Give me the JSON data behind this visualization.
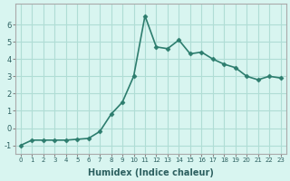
{
  "x": [
    0,
    1,
    2,
    3,
    4,
    5,
    6,
    7,
    8,
    9,
    10,
    11,
    12,
    13,
    14,
    15,
    16,
    17,
    18,
    19,
    20,
    21,
    22,
    23
  ],
  "y": [
    -1.0,
    -0.7,
    -0.7,
    -0.7,
    -0.7,
    -0.65,
    -0.6,
    -0.2,
    0.8,
    1.5,
    3.0,
    6.5,
    4.7,
    4.6,
    5.1,
    4.3,
    4.4,
    4.0,
    3.7,
    3.5,
    3.0,
    2.8,
    3.0,
    2.9
  ],
  "xlabel": "Humidex (Indice chaleur)",
  "ylabel": "",
  "ylim": [
    -1.5,
    7.2
  ],
  "xlim": [
    -0.5,
    23.5
  ],
  "line_color": "#2d7d6e",
  "marker_color": "#2d7d6e",
  "bg_color": "#d8f5f0",
  "grid_color": "#b0ddd5",
  "yticks": [
    -1,
    0,
    1,
    2,
    3,
    4,
    5,
    6
  ],
  "xticks": [
    0,
    1,
    2,
    3,
    4,
    5,
    6,
    7,
    8,
    9,
    10,
    11,
    12,
    13,
    14,
    15,
    16,
    17,
    18,
    19,
    20,
    21,
    22,
    23
  ]
}
